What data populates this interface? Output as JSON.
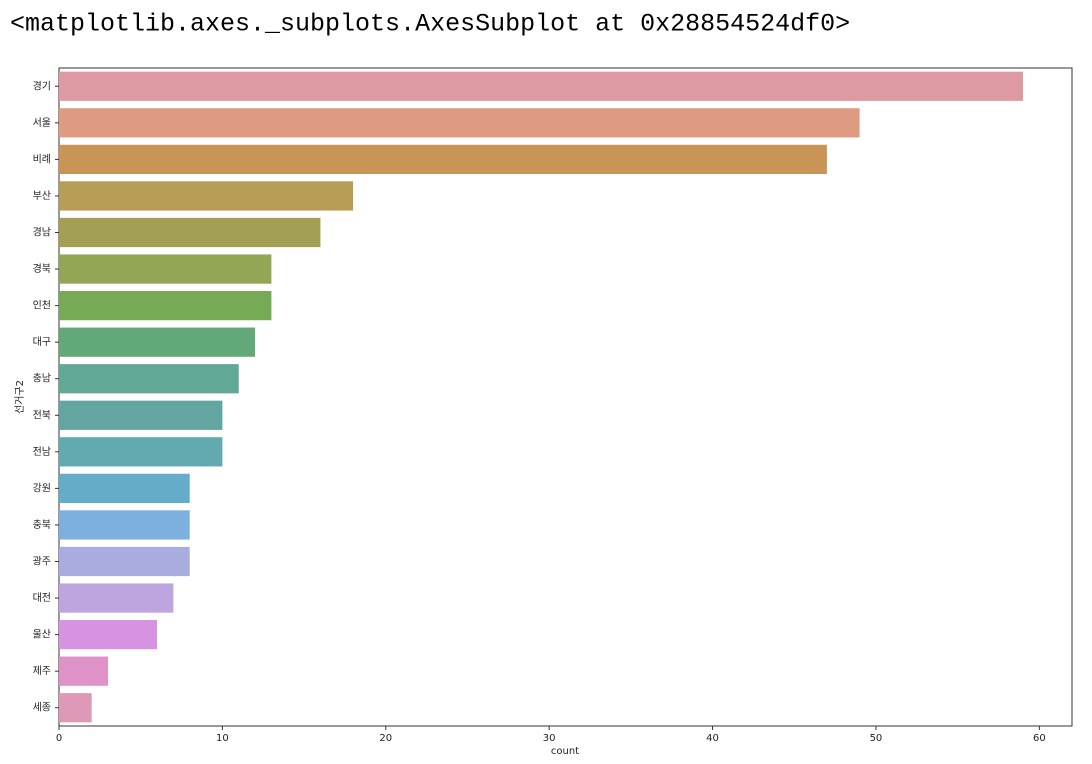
{
  "output": "<matplotlib.axes._subplots.AxesSubplot at 0x28854524df0>",
  "chart_data": {
    "type": "barh",
    "categories": [
      "경기",
      "서울",
      "비례",
      "부산",
      "경남",
      "경북",
      "인천",
      "대구",
      "충남",
      "전북",
      "전남",
      "강원",
      "충북",
      "광주",
      "대전",
      "울산",
      "제주",
      "세종"
    ],
    "values": [
      59,
      49,
      47,
      18,
      16,
      13,
      13,
      12,
      11,
      10,
      10,
      8,
      8,
      8,
      7,
      6,
      3,
      2
    ],
    "colors": [
      "#de9aa3",
      "#df9a82",
      "#c99556",
      "#b79d55",
      "#a39f55",
      "#93a655",
      "#76aa55",
      "#62a878",
      "#62a896",
      "#62a5a1",
      "#63a9b0",
      "#64acc8",
      "#7dafdf",
      "#a8acdf",
      "#bea5df",
      "#d593e0",
      "#de92c8",
      "#de99b7"
    ],
    "xlabel": "count",
    "ylabel": "선거구2",
    "xlim": [
      0,
      62
    ],
    "xticks": [
      0,
      10,
      20,
      30,
      40,
      50,
      60
    ],
    "grid": false
  }
}
